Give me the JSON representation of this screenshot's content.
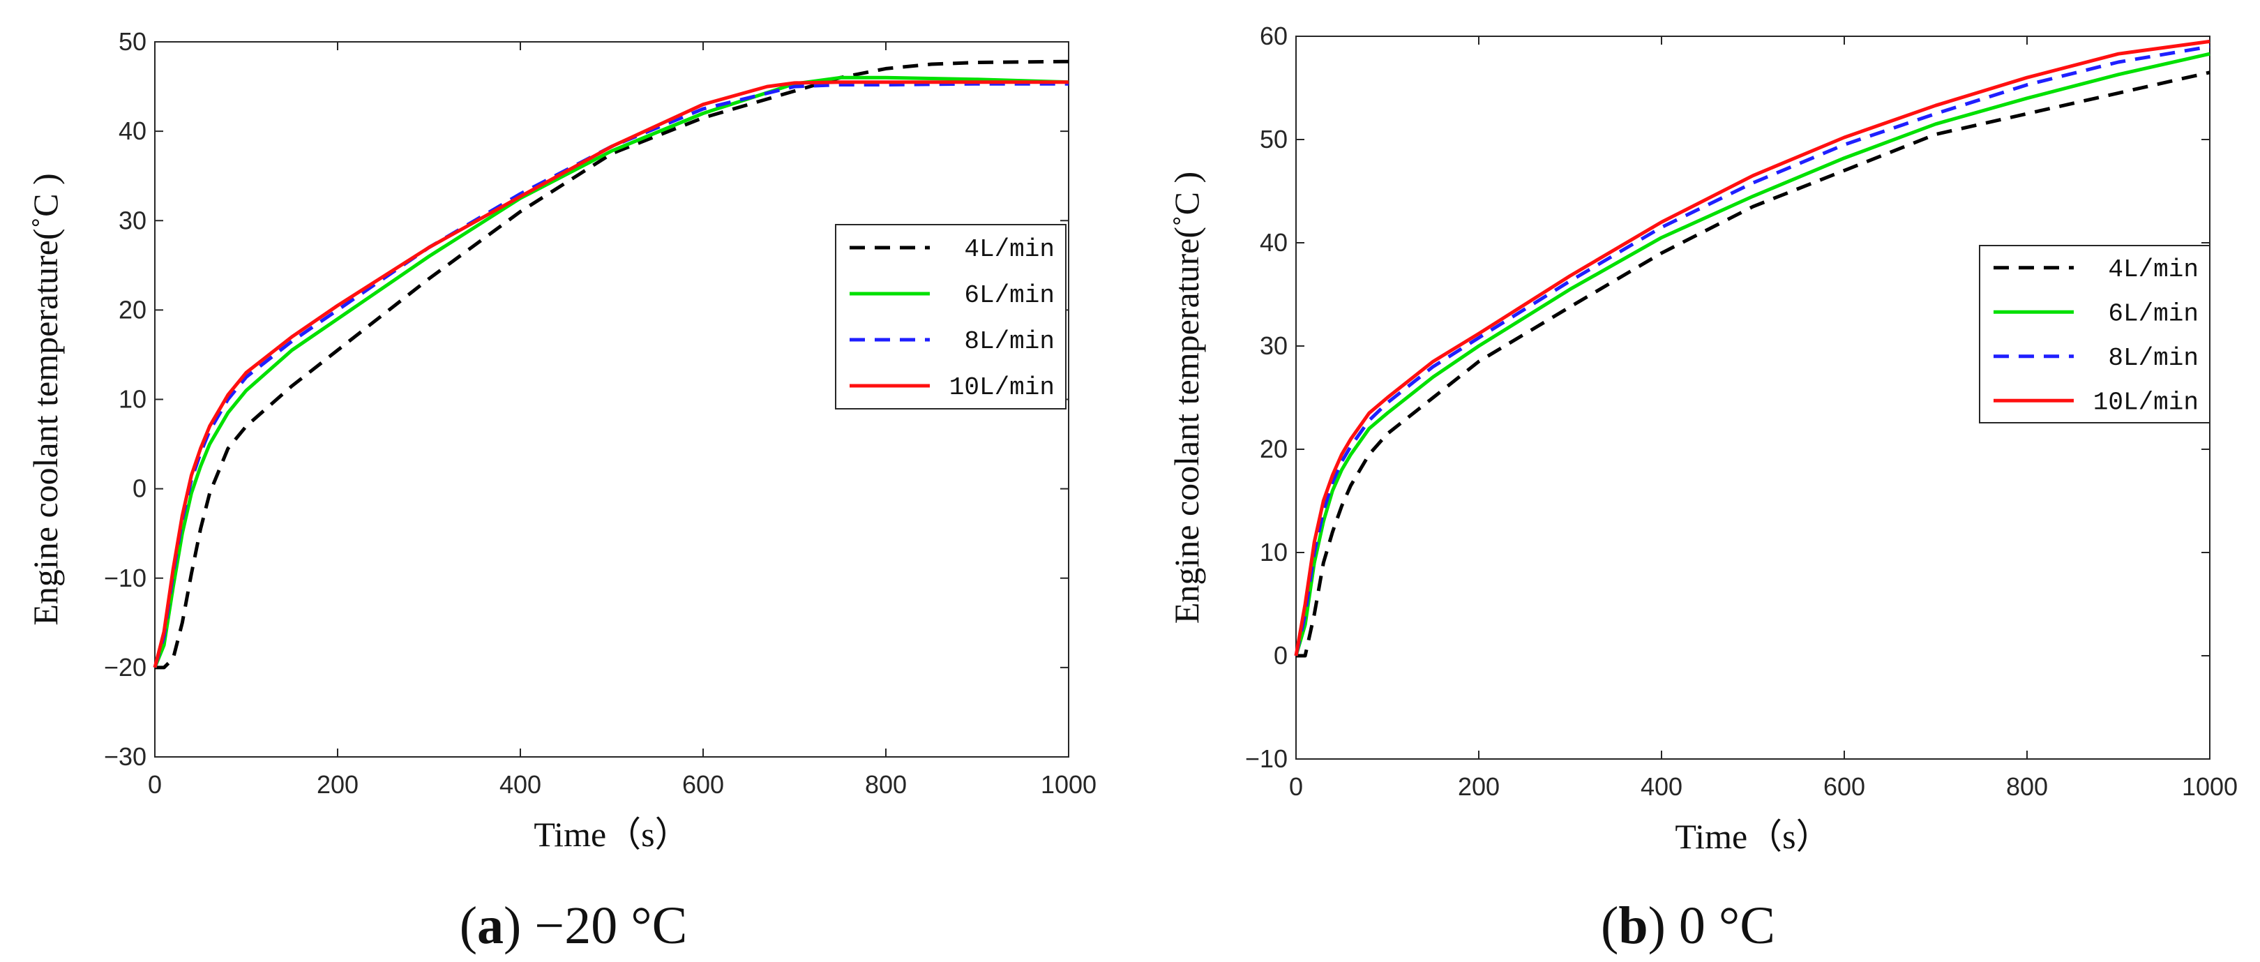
{
  "figure": {
    "captions": [
      {
        "letter": "a",
        "open": "(",
        "close": ")",
        "text": " −20 °C"
      },
      {
        "letter": "b",
        "open": "(",
        "close": ")",
        "text": " 0 °C"
      }
    ],
    "colors": {
      "4L/min": "#000000",
      "6L/min": "#00e000",
      "8L/min": "#1f1fff",
      "10L/min": "#ff1010"
    }
  },
  "chart_data": [
    {
      "type": "line",
      "panel": "a",
      "title": "",
      "xlabel": "Time（s）",
      "ylabel": "Engine coolant temperature(˚C )",
      "xlim": [
        0,
        1000
      ],
      "ylim": [
        -30,
        50
      ],
      "xticks": [
        "0",
        "200",
        "400",
        "600",
        "800",
        "1000"
      ],
      "xtick_values": [
        0,
        200,
        400,
        600,
        800,
        1000
      ],
      "yticks": [
        "−30",
        "−20",
        "−10",
        "0",
        "10",
        "20",
        "30",
        "40",
        "50"
      ],
      "ytick_values": [
        -30,
        -20,
        -10,
        0,
        10,
        20,
        30,
        40,
        50
      ],
      "legend": [
        "4L/min",
        "6L/min",
        "8L/min",
        "10L/min"
      ],
      "legend_position": "right-center",
      "series": [
        {
          "name": "4L/min",
          "style": "dashed",
          "color": "#000000",
          "x": [
            0,
            10,
            20,
            30,
            40,
            50,
            60,
            80,
            100,
            150,
            200,
            300,
            400,
            500,
            600,
            700,
            750,
            800,
            850,
            900,
            1000
          ],
          "y": [
            -20,
            -20,
            -19,
            -15,
            -9.5,
            -4.5,
            -0.5,
            4.5,
            7,
            11.5,
            15.5,
            23.5,
            31,
            37.5,
            41.5,
            44.5,
            46,
            47,
            47.5,
            47.7,
            47.8
          ]
        },
        {
          "name": "6L/min",
          "style": "solid",
          "color": "#00e000",
          "x": [
            0,
            10,
            20,
            30,
            40,
            50,
            60,
            80,
            100,
            150,
            200,
            300,
            400,
            500,
            600,
            700,
            750,
            800,
            900,
            1000
          ],
          "y": [
            -20,
            -17.5,
            -11,
            -5,
            -0.5,
            2.5,
            5,
            8.5,
            11,
            15.5,
            19,
            26,
            32.5,
            37.8,
            42,
            45.3,
            46,
            46,
            45.8,
            45.5
          ]
        },
        {
          "name": "8L/min",
          "style": "dashed",
          "color": "#1f1fff",
          "x": [
            0,
            10,
            20,
            30,
            40,
            50,
            60,
            80,
            100,
            150,
            200,
            300,
            400,
            500,
            600,
            700,
            750,
            800,
            900,
            1000
          ],
          "y": [
            -20,
            -16.5,
            -9.5,
            -3.5,
            1,
            4,
            6.5,
            10,
            12.5,
            16.5,
            20,
            27,
            33,
            38.3,
            42.5,
            45,
            45.2,
            45.2,
            45.3,
            45.3
          ]
        },
        {
          "name": "10L/min",
          "style": "solid",
          "color": "#ff1010",
          "x": [
            0,
            10,
            20,
            30,
            40,
            50,
            60,
            80,
            100,
            150,
            200,
            300,
            400,
            500,
            600,
            670,
            700,
            750,
            800,
            900,
            1000
          ],
          "y": [
            -20,
            -16,
            -9,
            -3,
            1.5,
            4.5,
            7,
            10.5,
            13,
            17,
            20.5,
            27,
            32.7,
            38.3,
            43,
            45,
            45.4,
            45.5,
            45.5,
            45.5,
            45.5
          ]
        }
      ]
    },
    {
      "type": "line",
      "panel": "b",
      "title": "",
      "xlabel": "Time（s）",
      "ylabel": "Engine coolant temperature(˚C )",
      "xlim": [
        0,
        1000
      ],
      "ylim": [
        -10,
        60
      ],
      "xticks": [
        "0",
        "200",
        "400",
        "600",
        "800",
        "1000"
      ],
      "xtick_values": [
        0,
        200,
        400,
        600,
        800,
        1000
      ],
      "yticks": [
        "−10",
        "0",
        "10",
        "20",
        "30",
        "40",
        "50",
        "60"
      ],
      "ytick_values": [
        -10,
        0,
        10,
        20,
        30,
        40,
        50,
        60
      ],
      "legend": [
        "4L/min",
        "6L/min",
        "8L/min",
        "10L/min"
      ],
      "legend_position": "right",
      "series": [
        {
          "name": "4L/min",
          "style": "dashed",
          "color": "#000000",
          "x": [
            0,
            10,
            20,
            30,
            40,
            50,
            60,
            80,
            100,
            150,
            200,
            300,
            400,
            500,
            600,
            700,
            800,
            900,
            1000
          ],
          "y": [
            0,
            0,
            4,
            9,
            12,
            14.5,
            16.5,
            19.5,
            21.5,
            25,
            28.5,
            33.8,
            39,
            43.5,
            47,
            50.5,
            52.5,
            54.5,
            56.5
          ]
        },
        {
          "name": "6L/min",
          "style": "solid",
          "color": "#00e000",
          "x": [
            0,
            10,
            20,
            30,
            40,
            50,
            60,
            80,
            100,
            150,
            200,
            300,
            400,
            500,
            600,
            700,
            800,
            900,
            1000
          ],
          "y": [
            0,
            3,
            9,
            13,
            16,
            18,
            19.5,
            22,
            23.5,
            27,
            30,
            35.5,
            40.5,
            44.5,
            48.2,
            51.5,
            54,
            56.3,
            58.3
          ]
        },
        {
          "name": "8L/min",
          "style": "dashed",
          "color": "#1f1fff",
          "x": [
            0,
            10,
            20,
            30,
            40,
            50,
            60,
            80,
            100,
            150,
            200,
            300,
            400,
            500,
            600,
            700,
            800,
            900,
            1000
          ],
          "y": [
            0,
            4,
            10,
            14,
            16.8,
            18.8,
            20.3,
            22.8,
            24.5,
            28,
            30.8,
            36.3,
            41.5,
            45.8,
            49.5,
            52.5,
            55.3,
            57.5,
            59
          ]
        },
        {
          "name": "10L/min",
          "style": "solid",
          "color": "#ff1010",
          "x": [
            0,
            10,
            20,
            30,
            40,
            50,
            60,
            80,
            100,
            150,
            200,
            300,
            400,
            500,
            600,
            700,
            800,
            900,
            1000
          ],
          "y": [
            0,
            5,
            11,
            15,
            17.5,
            19.5,
            21,
            23.5,
            25,
            28.5,
            31.2,
            36.8,
            42,
            46.5,
            50.2,
            53.3,
            56,
            58.3,
            59.5
          ]
        }
      ]
    }
  ]
}
